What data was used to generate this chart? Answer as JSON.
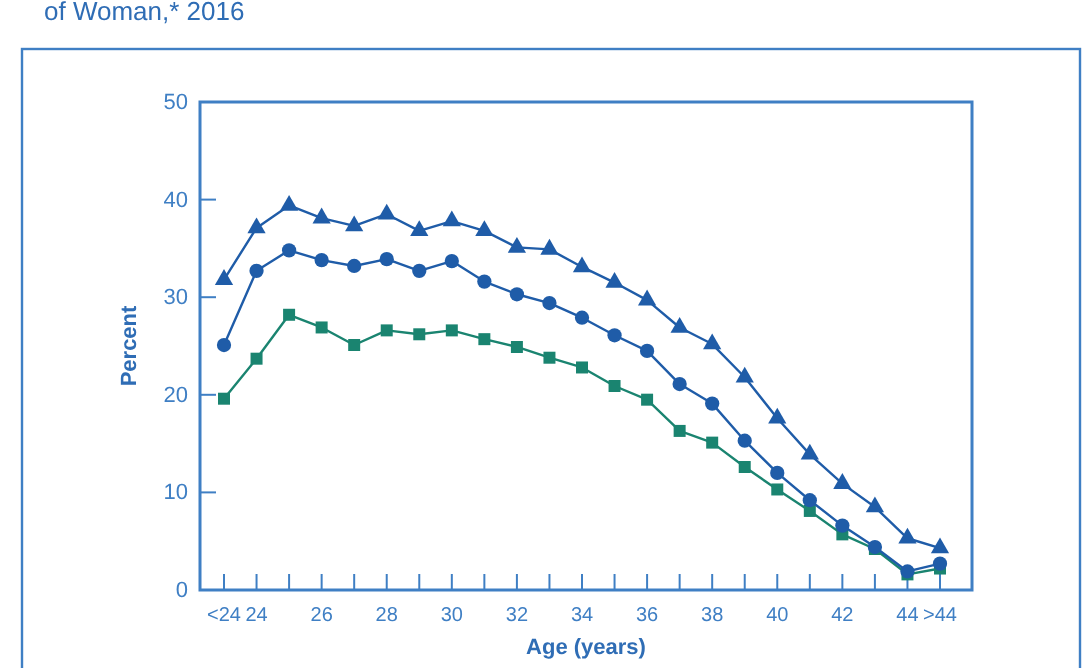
{
  "chart_data": {
    "type": "line",
    "title": "of Woman,* 2016",
    "xlabel": "Age (years)",
    "ylabel": "Percent",
    "categories": [
      "<24",
      "24",
      null,
      "26",
      null,
      "28",
      null,
      "30",
      null,
      "32",
      null,
      "34",
      null,
      "36",
      null,
      "38",
      null,
      "40",
      null,
      "42",
      null,
      "44",
      ">44"
    ],
    "ylim": [
      0,
      50
    ],
    "yticks": [
      0,
      10,
      20,
      30,
      40,
      50
    ],
    "grid": false,
    "line_style": "solid",
    "series": [
      {
        "color": "#1f5ca8",
        "marker": "triangle",
        "values": [
          31.8,
          37.1,
          39.4,
          38.1,
          37.3,
          38.5,
          36.8,
          37.8,
          36.8,
          35.1,
          34.9,
          33.1,
          31.5,
          29.7,
          26.9,
          25.2,
          21.8,
          17.6,
          13.9,
          10.9,
          8.5,
          5.3,
          4.3
        ]
      },
      {
        "color": "#1f5ca8",
        "marker": "circle",
        "values": [
          25.1,
          32.7,
          34.8,
          33.8,
          33.2,
          33.9,
          32.7,
          33.7,
          31.6,
          30.3,
          29.4,
          27.9,
          26.1,
          24.5,
          21.1,
          19.1,
          15.3,
          12.0,
          9.2,
          6.6,
          4.4,
          1.9,
          2.7
        ]
      },
      {
        "color": "#1a8470",
        "marker": "square",
        "values": [
          19.6,
          23.7,
          28.2,
          26.9,
          25.1,
          26.6,
          26.2,
          26.6,
          25.7,
          24.9,
          23.8,
          22.8,
          20.9,
          19.5,
          16.3,
          15.1,
          12.6,
          10.3,
          8.1,
          5.7,
          4.2,
          1.6,
          2.2
        ]
      }
    ]
  }
}
